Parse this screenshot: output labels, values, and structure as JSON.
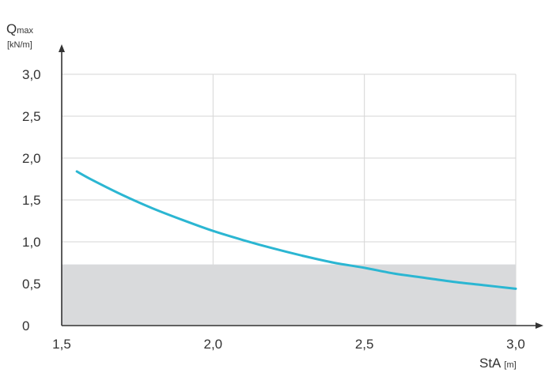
{
  "chart_data": {
    "type": "line",
    "ylabel": "Q",
    "ylabel_sub": "max",
    "yunit": "[kN/m]",
    "xlabel": "StA",
    "xunit": "[m]",
    "xlim": [
      1.5,
      3.0
    ],
    "ylim": [
      0,
      3.0
    ],
    "x_ticks": [
      1.5,
      2.0,
      2.5,
      3.0
    ],
    "y_ticks": [
      0,
      0.5,
      1.0,
      1.5,
      2.0,
      2.5,
      3.0
    ],
    "x_tick_labels": [
      "1,5",
      "2,0",
      "2,5",
      "3,0"
    ],
    "y_tick_labels": [
      "0",
      "0,5",
      "1,0",
      "1,5",
      "2,0",
      "2,5",
      "3,0"
    ],
    "grid": true,
    "shaded_band": {
      "y_from": 0,
      "y_to": 0.73,
      "color": "#d9dadc"
    },
    "series": [
      {
        "color": "#2bb6d2",
        "x": [
          1.55,
          1.6,
          1.7,
          1.8,
          1.9,
          2.0,
          2.1,
          2.2,
          2.3,
          2.4,
          2.5,
          2.6,
          2.7,
          2.8,
          2.9,
          3.0
        ],
        "y": [
          1.84,
          1.74,
          1.56,
          1.4,
          1.26,
          1.13,
          1.02,
          0.92,
          0.83,
          0.75,
          0.69,
          0.62,
          0.57,
          0.52,
          0.48,
          0.44
        ]
      }
    ]
  }
}
